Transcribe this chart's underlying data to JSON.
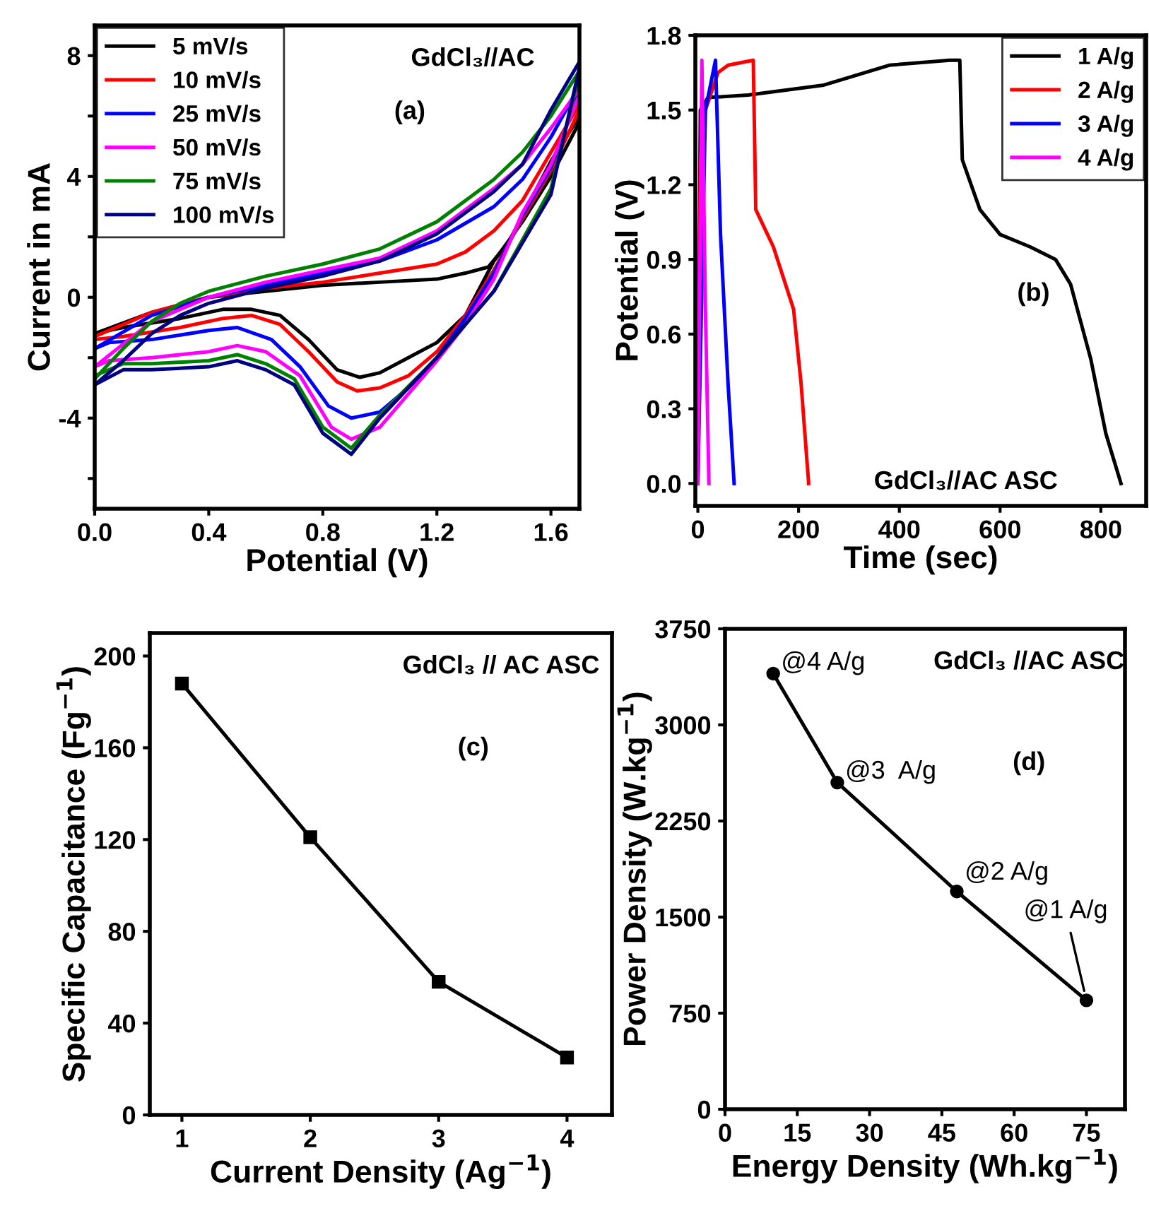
{
  "chart_data": [
    {
      "type": "line",
      "xlabel": "Potential (V)",
      "ylabel": "Current in mA",
      "annotations": [
        "GdCl₃//AC",
        "(a)"
      ],
      "legend": "top left",
      "grid": false,
      "xlim": [
        0,
        1.7
      ],
      "ylim": [
        -7,
        9
      ],
      "xticks": [
        {
          "value": 0,
          "label": "0.0"
        },
        0.4,
        0.8,
        1.2,
        1.6
      ],
      "yticks": [
        {
          "value": -6,
          "label": null
        },
        -4,
        {
          "value": -2,
          "label": null
        },
        0,
        {
          "value": 2,
          "label": null
        },
        4,
        {
          "value": 6,
          "label": null
        },
        8
      ],
      "series": [
        {
          "name": "5 mV/s",
          "color": "#000000",
          "x": [
            0,
            0.2,
            0.4,
            0.6,
            0.8,
            1.0,
            1.2,
            1.3,
            1.38,
            1.45,
            1.5,
            1.6,
            1.7
          ],
          "values": [
            -1.2,
            -0.5,
            0,
            0.2,
            0.4,
            0.5,
            0.6,
            0.8,
            1.0,
            1.8,
            2.7,
            4.5,
            6.0
          ]
        },
        {
          "color": "#000000",
          "x": [
            1.7,
            1.6,
            1.5,
            1.4,
            1.3,
            1.2,
            1.1,
            1.0,
            0.93,
            0.85,
            0.75,
            0.65,
            0.55,
            0.45,
            0.3,
            0.1,
            0
          ],
          "values": [
            5.8,
            4.0,
            2.5,
            1.2,
            -0.6,
            -1.5,
            -2.0,
            -2.5,
            -2.65,
            -2.4,
            -1.4,
            -0.6,
            -0.4,
            -0.4,
            -0.7,
            -1.0,
            -1.2
          ]
        },
        {
          "name": "10 mV/s",
          "color": "#ff0000",
          "x": [
            0,
            0.2,
            0.4,
            0.6,
            0.8,
            1.0,
            1.2,
            1.3,
            1.4,
            1.5,
            1.6,
            1.7
          ],
          "values": [
            -1.3,
            -0.5,
            0,
            0.3,
            0.5,
            0.8,
            1.1,
            1.5,
            2.2,
            3.2,
            4.8,
            6.4
          ]
        },
        {
          "color": "#ff0000",
          "x": [
            1.7,
            1.6,
            1.5,
            1.4,
            1.3,
            1.2,
            1.1,
            1.0,
            0.92,
            0.85,
            0.75,
            0.65,
            0.55,
            0.45,
            0.3,
            0.1,
            0
          ],
          "values": [
            6.2,
            4.2,
            2.6,
            0.9,
            -0.6,
            -1.8,
            -2.6,
            -3.0,
            -3.1,
            -2.8,
            -1.8,
            -0.9,
            -0.6,
            -0.7,
            -1.0,
            -1.3,
            -1.4
          ]
        },
        {
          "name": "25 mV/s",
          "color": "#0000ff",
          "x": [
            0,
            0.2,
            0.4,
            0.6,
            0.8,
            1.0,
            1.2,
            1.4,
            1.5,
            1.6,
            1.7
          ],
          "values": [
            -1.7,
            -0.6,
            0,
            0.4,
            0.8,
            1.2,
            1.9,
            3.0,
            3.9,
            5.3,
            7.0
          ]
        },
        {
          "color": "#0000ff",
          "x": [
            1.7,
            1.6,
            1.5,
            1.4,
            1.3,
            1.2,
            1.1,
            1.0,
            0.9,
            0.82,
            0.72,
            0.62,
            0.5,
            0.4,
            0.2,
            0.05,
            0
          ],
          "values": [
            6.8,
            4.3,
            2.7,
            0.8,
            -0.7,
            -2.0,
            -3.0,
            -3.8,
            -4.0,
            -3.6,
            -2.3,
            -1.4,
            -1.0,
            -1.1,
            -1.4,
            -1.5,
            -1.7
          ]
        },
        {
          "name": "50 mV/s",
          "color": "#ff00ff",
          "x": [
            0,
            0.2,
            0.4,
            0.6,
            0.8,
            1.0,
            1.2,
            1.4,
            1.5,
            1.6,
            1.7
          ],
          "values": [
            -2.3,
            -0.8,
            0,
            0.5,
            0.9,
            1.3,
            2.2,
            3.6,
            4.4,
            5.6,
            6.9
          ]
        },
        {
          "color": "#ff00ff",
          "x": [
            1.7,
            1.6,
            1.5,
            1.4,
            1.3,
            1.2,
            1.1,
            1.0,
            0.9,
            0.83,
            0.72,
            0.6,
            0.5,
            0.4,
            0.2,
            0.05,
            0
          ],
          "values": [
            6.7,
            4.4,
            2.8,
            0.6,
            -0.9,
            -2.1,
            -3.2,
            -4.3,
            -4.7,
            -4.3,
            -2.6,
            -1.8,
            -1.6,
            -1.8,
            -2.0,
            -2.1,
            -2.3
          ]
        },
        {
          "name": "75 mV/s",
          "color": "#008000",
          "x": [
            0,
            0.1,
            0.2,
            0.3,
            0.4,
            0.6,
            0.8,
            1.0,
            1.2,
            1.4,
            1.5,
            1.6,
            1.7
          ],
          "values": [
            -2.7,
            -1.7,
            -0.8,
            -0.2,
            0.2,
            0.7,
            1.1,
            1.6,
            2.5,
            3.9,
            4.8,
            6.0,
            7.5
          ]
        },
        {
          "color": "#008000",
          "x": [
            1.7,
            1.6,
            1.4,
            1.2,
            1.0,
            0.9,
            0.8,
            0.7,
            0.6,
            0.5,
            0.4,
            0.2,
            0.1,
            0
          ],
          "values": [
            7.4,
            3.6,
            0.2,
            -2.0,
            -3.9,
            -5.0,
            -4.3,
            -2.7,
            -2.2,
            -1.9,
            -2.1,
            -2.2,
            -2.2,
            -2.6
          ]
        },
        {
          "name": "100 mV/s",
          "color": "#000080",
          "x": [
            0,
            0.1,
            0.2,
            0.3,
            0.4,
            0.6,
            0.8,
            1.0,
            1.2,
            1.4,
            1.5,
            1.6,
            1.7
          ],
          "values": [
            -2.9,
            -2.1,
            -1.2,
            -0.6,
            -0.2,
            0.3,
            0.7,
            1.2,
            2.1,
            3.5,
            4.4,
            6.2,
            7.8
          ]
        },
        {
          "color": "#000080",
          "x": [
            1.7,
            1.6,
            1.4,
            1.2,
            1.0,
            0.9,
            0.8,
            0.7,
            0.6,
            0.5,
            0.4,
            0.2,
            0.1,
            0
          ],
          "values": [
            7.6,
            3.4,
            0.2,
            -2.0,
            -4.0,
            -5.2,
            -4.5,
            -2.9,
            -2.4,
            -2.1,
            -2.3,
            -2.4,
            -2.4,
            -2.9
          ]
        }
      ]
    },
    {
      "type": "line",
      "xlabel": "Time (sec)",
      "ylabel": "Potential (V)",
      "annotations": [
        "(b)",
        "GdCl₃//AC ASC"
      ],
      "legend": "top right",
      "grid": false,
      "xlim": [
        -5,
        890
      ],
      "ylim": [
        -0.09,
        1.8
      ],
      "xticks": [
        0,
        200,
        400,
        600,
        800
      ],
      "yticks": [
        {
          "value": 0,
          "label": "0.0"
        },
        0.3,
        0.6,
        0.9,
        1.2,
        1.5,
        1.8
      ],
      "series": [
        {
          "name": "1 A/g",
          "color": "#000000",
          "x": [
            0,
            5,
            20,
            100,
            250,
            380,
            500,
            520,
            525,
            560,
            600,
            660,
            710,
            740,
            780,
            810,
            840
          ],
          "values": [
            0,
            1.5,
            1.55,
            1.56,
            1.6,
            1.68,
            1.7,
            1.7,
            1.3,
            1.1,
            1.0,
            0.95,
            0.9,
            0.8,
            0.5,
            0.2,
            0
          ]
        },
        {
          "name": "2 A/g",
          "color": "#ff0000",
          "x": [
            0,
            5,
            15,
            40,
            60,
            110,
            115,
            150,
            190,
            205,
            220
          ],
          "values": [
            0,
            1.3,
            1.5,
            1.65,
            1.68,
            1.7,
            1.1,
            0.95,
            0.7,
            0.4,
            0
          ]
        },
        {
          "name": "3 A/g",
          "color": "#0000ff",
          "x": [
            0,
            15,
            35,
            45,
            60,
            72
          ],
          "values": [
            0,
            1.5,
            1.7,
            1.0,
            0.4,
            0
          ]
        },
        {
          "name": "4 A/g",
          "color": "#ff00ff",
          "x": [
            0,
            8,
            15,
            22
          ],
          "values": [
            0,
            1.7,
            0.7,
            0
          ]
        }
      ]
    },
    {
      "type": "line",
      "xlabel": "Current Density (Ag$^{−1}$)",
      "ylabel": "Specific Capacitance (Fg$^{−1}$)",
      "annotations": [
        "GdCl₃ // AC ASC",
        "(c)"
      ],
      "grid": false,
      "marker": "square",
      "xlim": [
        0.75,
        4.35
      ],
      "ylim": [
        0,
        210
      ],
      "xticks": [
        1,
        2,
        3,
        4
      ],
      "yticks": [
        0,
        40,
        80,
        120,
        160,
        200
      ],
      "series": [
        {
          "color": "#000000",
          "x": [
            1,
            2,
            3,
            4
          ],
          "values": [
            188,
            121,
            58,
            25
          ]
        }
      ]
    },
    {
      "type": "line",
      "xlabel": "Energy Density (Wh.kg$^{−1}$)",
      "ylabel": "Power Density (W.kg$^{−1}$)",
      "annotations": [
        "GdCl₃ //AC ASC",
        "(d)",
        {
          "text": "@4 A/g",
          "x": 10,
          "y": 3400
        },
        {
          "text": "@3  A/g",
          "x": 23.3,
          "y": 2550
        },
        {
          "text": "@2 A/g",
          "x": 48.1,
          "y": 1700
        },
        {
          "text": "@1 A/g",
          "x": 75,
          "y": 850
        }
      ],
      "grid": false,
      "marker": "circle",
      "xlim": [
        0,
        83
      ],
      "ylim": [
        0,
        3750
      ],
      "xticks": [
        0,
        15,
        30,
        45,
        60,
        75
      ],
      "yticks": [
        0,
        750,
        1500,
        2250,
        3000,
        3750
      ],
      "series": [
        {
          "color": "#000000",
          "x": [
            10,
            23.3,
            48.1,
            75
          ],
          "values": [
            3400,
            2550,
            1700,
            850
          ]
        }
      ]
    }
  ]
}
